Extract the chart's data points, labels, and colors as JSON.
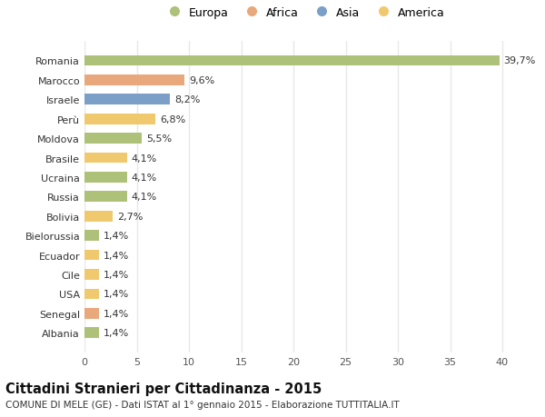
{
  "categories": [
    "Albania",
    "Senegal",
    "USA",
    "Cile",
    "Ecuador",
    "Bielorussia",
    "Bolivia",
    "Russia",
    "Ucraina",
    "Brasile",
    "Moldova",
    "Perù",
    "Israele",
    "Marocco",
    "Romania"
  ],
  "values": [
    1.4,
    1.4,
    1.4,
    1.4,
    1.4,
    1.4,
    2.7,
    4.1,
    4.1,
    4.1,
    5.5,
    6.8,
    8.2,
    9.6,
    39.7
  ],
  "labels": [
    "1,4%",
    "1,4%",
    "1,4%",
    "1,4%",
    "1,4%",
    "1,4%",
    "2,7%",
    "4,1%",
    "4,1%",
    "4,1%",
    "5,5%",
    "6,8%",
    "8,2%",
    "9,6%",
    "39,7%"
  ],
  "colors": [
    "#adc178",
    "#e8a87c",
    "#f0c96e",
    "#f0c96e",
    "#f0c96e",
    "#adc178",
    "#f0c96e",
    "#adc178",
    "#adc178",
    "#f0c96e",
    "#adc178",
    "#f0c96e",
    "#7b9fc7",
    "#e8a87c",
    "#adc178"
  ],
  "continent_colors": {
    "Europa": "#adc178",
    "Africa": "#e8a87c",
    "Asia": "#7b9fc7",
    "America": "#f0c96e"
  },
  "xlim": [
    0,
    42
  ],
  "xticks": [
    0,
    5,
    10,
    15,
    20,
    25,
    30,
    35,
    40
  ],
  "title": "Cittadini Stranieri per Cittadinanza - 2015",
  "subtitle": "COMUNE DI MELE (GE) - Dati ISTAT al 1° gennaio 2015 - Elaborazione TUTTITALIA.IT",
  "background_color": "#ffffff",
  "grid_color": "#e8e8e8",
  "bar_height": 0.55,
  "label_fontsize": 8,
  "tick_fontsize": 8,
  "title_fontsize": 10.5,
  "subtitle_fontsize": 7.5
}
